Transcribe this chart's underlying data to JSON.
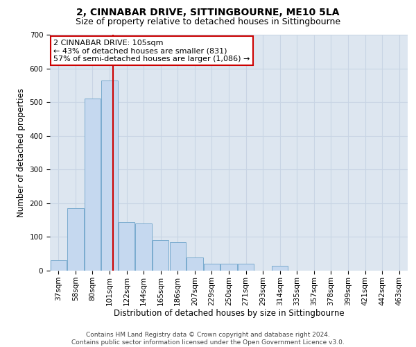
{
  "title": "2, CINNABAR DRIVE, SITTINGBOURNE, ME10 5LA",
  "subtitle": "Size of property relative to detached houses in Sittingbourne",
  "xlabel": "Distribution of detached houses by size in Sittingbourne",
  "ylabel": "Number of detached properties",
  "categories": [
    "37sqm",
    "58sqm",
    "80sqm",
    "101sqm",
    "122sqm",
    "144sqm",
    "165sqm",
    "186sqm",
    "207sqm",
    "229sqm",
    "250sqm",
    "271sqm",
    "293sqm",
    "314sqm",
    "335sqm",
    "357sqm",
    "378sqm",
    "399sqm",
    "421sqm",
    "442sqm",
    "463sqm"
  ],
  "values": [
    30,
    185,
    510,
    565,
    145,
    140,
    90,
    85,
    40,
    20,
    20,
    20,
    0,
    15,
    0,
    0,
    0,
    0,
    0,
    0,
    0
  ],
  "bar_color": "#c5d8ef",
  "bar_edge_color": "#7aabcf",
  "grid_color": "#c8d4e4",
  "background_color": "#dde6f0",
  "annotation_box_text": "2 CINNABAR DRIVE: 105sqm\n← 43% of detached houses are smaller (831)\n57% of semi-detached houses are larger (1,086) →",
  "annotation_box_color": "#ffffff",
  "annotation_box_edge_color": "#cc0000",
  "vline_color": "#cc0000",
  "vline_x": 3.19,
  "ylim": [
    0,
    700
  ],
  "yticks": [
    0,
    100,
    200,
    300,
    400,
    500,
    600,
    700
  ],
  "footer": "Contains HM Land Registry data © Crown copyright and database right 2024.\nContains public sector information licensed under the Open Government Licence v3.0.",
  "title_fontsize": 10,
  "subtitle_fontsize": 9,
  "xlabel_fontsize": 8.5,
  "ylabel_fontsize": 8.5,
  "tick_fontsize": 7.5,
  "annotation_fontsize": 8,
  "footer_fontsize": 6.5
}
